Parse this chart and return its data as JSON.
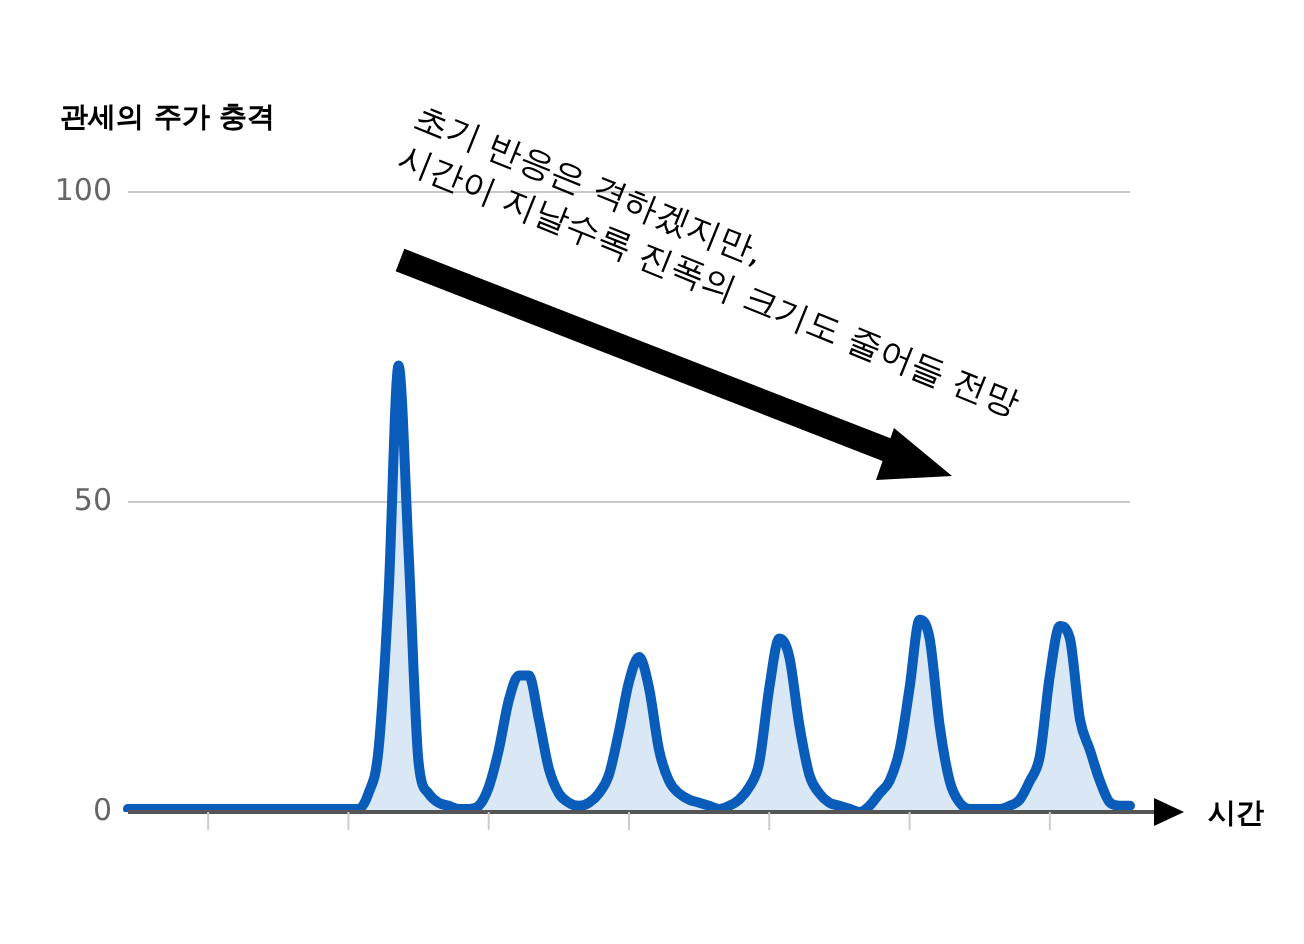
{
  "chart_data": {
    "type": "area",
    "ylabel": "관세의 주가 충격",
    "xlabel": "시간",
    "annotations": [
      "초기 반응은 격하겠지만,\n시간이 지날수록 진폭의 크기도 줄어들 전망"
    ],
    "categories": [
      null,
      null,
      null,
      null,
      null,
      null,
      null,
      null,
      null,
      null,
      null,
      null,
      null,
      null,
      null,
      null,
      null,
      null,
      null,
      null,
      null,
      null,
      null,
      null,
      null,
      null,
      null,
      null,
      null,
      null,
      null,
      null,
      null,
      null,
      null,
      null,
      null,
      null,
      null,
      null,
      null,
      null,
      null,
      null,
      null,
      null,
      null,
      null,
      null,
      null,
      null,
      null,
      null,
      null,
      null,
      null,
      null,
      null,
      null,
      null,
      null,
      null,
      null,
      null,
      null,
      null,
      null,
      null,
      null,
      null,
      null,
      null,
      null,
      null,
      null,
      null,
      null,
      null,
      null,
      null,
      null,
      null,
      null,
      null,
      null,
      null,
      null,
      null,
      null,
      null,
      null,
      null,
      null,
      null,
      null,
      null,
      null,
      null,
      null,
      null,
      null
    ],
    "values": [
      0.5,
      0.5,
      0.5,
      0.5,
      0.5,
      0.5,
      0.5,
      0.5,
      0.5,
      0.5,
      0.5,
      0.5,
      0.5,
      0.5,
      0.5,
      0.5,
      0.5,
      0.5,
      0.5,
      0.5,
      0.5,
      0.5,
      0.5,
      0.5,
      3,
      10,
      35,
      72,
      42,
      8,
      3,
      1.5,
      1,
      0.5,
      0.5,
      1,
      4,
      10,
      18,
      22,
      22,
      15,
      7,
      3,
      1.5,
      1,
      1.5,
      3,
      6,
      13,
      21,
      25,
      20,
      10,
      5,
      3,
      2,
      1.5,
      1,
      0.5,
      1,
      2,
      4,
      8,
      20,
      28,
      25,
      14,
      6,
      3,
      1.5,
      1,
      0.5,
      0,
      1,
      3,
      5,
      10,
      20,
      31,
      28,
      14,
      5,
      1.5,
      0.5,
      0.5,
      0.5,
      0.5,
      1,
      2,
      5,
      9,
      22,
      30,
      28,
      15,
      10,
      5,
      1.5,
      1,
      1
    ],
    "color": "#0a5cba",
    "ylim": [
      0,
      100
    ],
    "yticks": [
      0,
      50,
      100
    ],
    "grid": "y",
    "legend": false,
    "marker": "none"
  }
}
